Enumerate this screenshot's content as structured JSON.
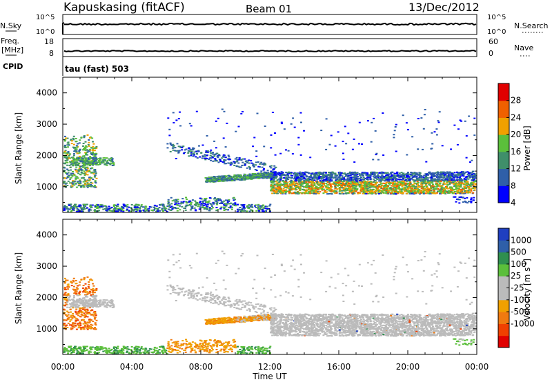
{
  "header": {
    "station": "Kapuskasing (fitACF)",
    "beam": "Beam 01",
    "date": "13/Dec/2012"
  },
  "panels": {
    "noise": {
      "left_label": "N.Sky",
      "right_label": "N.Search",
      "left_ticks": [
        "10^5",
        "10^0"
      ],
      "right_ticks": [
        "10^5",
        "10^0"
      ]
    },
    "freq": {
      "left_label_1": "Freq.",
      "left_label_2": "[MHz]",
      "right_label": "Nave",
      "left_ticks": [
        "18",
        "8"
      ],
      "right_ticks": [
        "60",
        "0"
      ]
    },
    "cpid": {
      "label": "CPID",
      "text": "tau (fast) 503"
    }
  },
  "colors": {
    "power_scale": [
      "#0000ff",
      "#2f5fa8",
      "#3f8f6a",
      "#5bbf3b",
      "#f0a000",
      "#f06000",
      "#e00000"
    ],
    "velocity_scale": [
      "#e00000",
      "#f04000",
      "#f07a10",
      "#f0a000",
      "#bbbbbb",
      "#bbbbbb",
      "#5bbf3b",
      "#2f8f4f",
      "#2f5fa8",
      "#1f3fc0"
    ],
    "ground_scatter": "#bbbbbb"
  },
  "chart_data": [
    {
      "type": "heatmap",
      "title": "Power",
      "ylabel": "Slant Range [km]",
      "colorbar_label": "Power [dB]",
      "colorbar_ticks": [
        "28",
        "24",
        "20",
        "16",
        "12",
        "8",
        "4"
      ],
      "ylim": [
        180,
        4500
      ],
      "yticks": [
        "4000",
        "3000",
        "2000",
        "1000"
      ],
      "xlim": [
        0,
        24
      ],
      "xtick_labels": [
        "00:00",
        "04:00",
        "08:00",
        "12:00",
        "16:00",
        "20:00",
        "00:00"
      ]
    },
    {
      "type": "heatmap",
      "title": "Velocity",
      "ylabel": "Slant Range [km]",
      "colorbar_label": "Velocity [m s^-1]",
      "colorbar_ticks": [
        "1000",
        "500",
        "100",
        "25",
        "-25",
        "-100",
        "-500",
        "-1000"
      ],
      "ylim": [
        180,
        4500
      ],
      "yticks": [
        "4000",
        "3000",
        "2000",
        "1000"
      ],
      "xlim": [
        0,
        24
      ],
      "xtick_labels": [
        "00:00",
        "04:00",
        "08:00",
        "12:00",
        "16:00",
        "20:00",
        "00:00"
      ],
      "xlabel": "Time UT"
    }
  ]
}
